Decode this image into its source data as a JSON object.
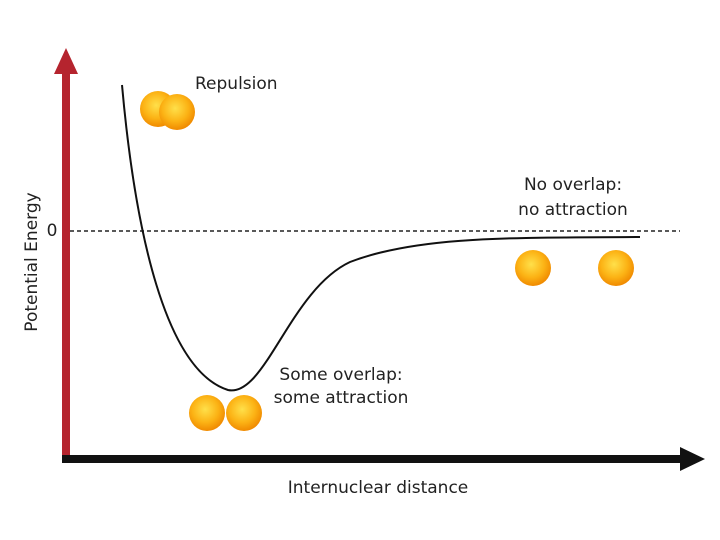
{
  "diagram": {
    "y_axis_label": "Potential Energy",
    "zero_label": "0",
    "x_axis_label": "Internuclear distance",
    "annotations": {
      "repulsion": "Repulsion",
      "no_overlap": [
        "No overlap:",
        "no attraction"
      ],
      "some_overlap": [
        "Some overlap:",
        "some attraction"
      ]
    }
  }
}
